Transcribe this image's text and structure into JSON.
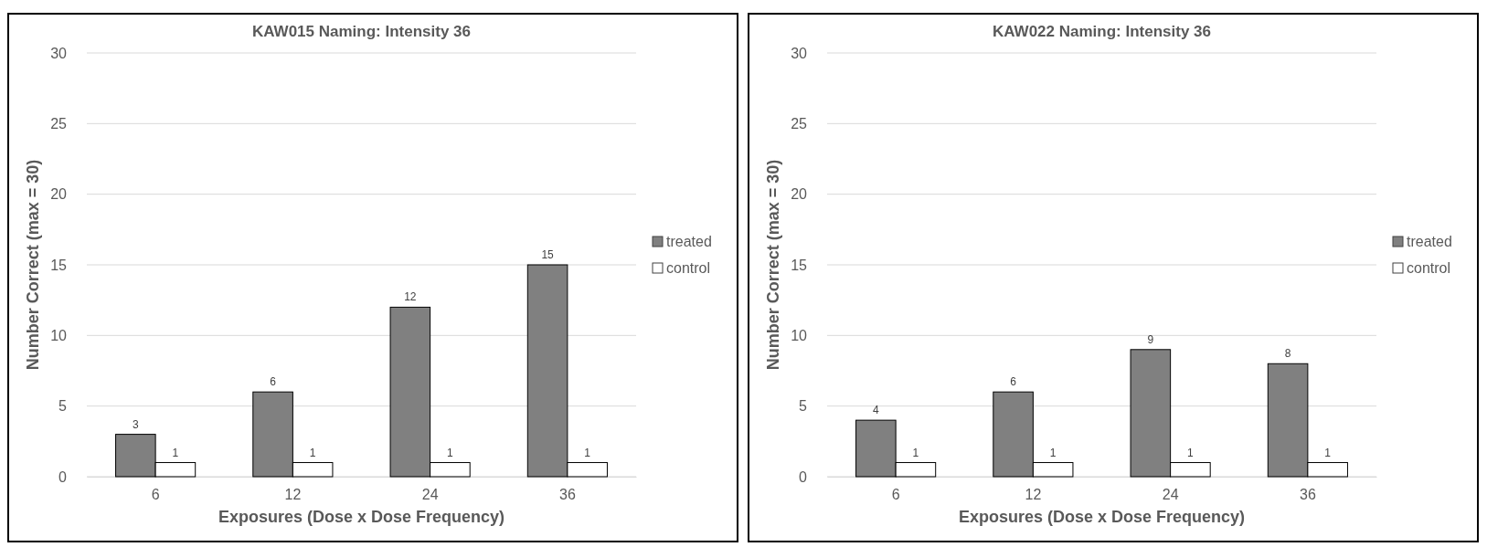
{
  "chart_data": [
    {
      "type": "bar",
      "title": "KAW015 Naming: Intensity 36",
      "xlabel": "Exposures (Dose x Dose Frequency)",
      "ylabel": "Number Correct (max = 30)",
      "categories": [
        "6",
        "12",
        "24",
        "36"
      ],
      "series": [
        {
          "name": "treated",
          "color": "#808080",
          "values": [
            3,
            6,
            12,
            15
          ]
        },
        {
          "name": "control",
          "color": "#ffffff",
          "values": [
            1,
            1,
            1,
            1
          ]
        }
      ],
      "ylim": [
        0,
        30
      ],
      "yticks": [
        0,
        5,
        10,
        15,
        20,
        25,
        30
      ],
      "grid": "y",
      "legend": "right",
      "data_labels": true
    },
    {
      "type": "bar",
      "title": "KAW022 Naming: Intensity 36",
      "xlabel": "Exposures (Dose x Dose Frequency)",
      "ylabel": "Number Correct (max = 30)",
      "categories": [
        "6",
        "12",
        "24",
        "36"
      ],
      "series": [
        {
          "name": "treated",
          "color": "#808080",
          "values": [
            4,
            6,
            9,
            8
          ]
        },
        {
          "name": "control",
          "color": "#ffffff",
          "values": [
            1,
            1,
            1,
            1
          ]
        }
      ],
      "ylim": [
        0,
        30
      ],
      "yticks": [
        0,
        5,
        10,
        15,
        20,
        25,
        30
      ],
      "grid": "y",
      "legend": "right",
      "data_labels": true
    }
  ]
}
